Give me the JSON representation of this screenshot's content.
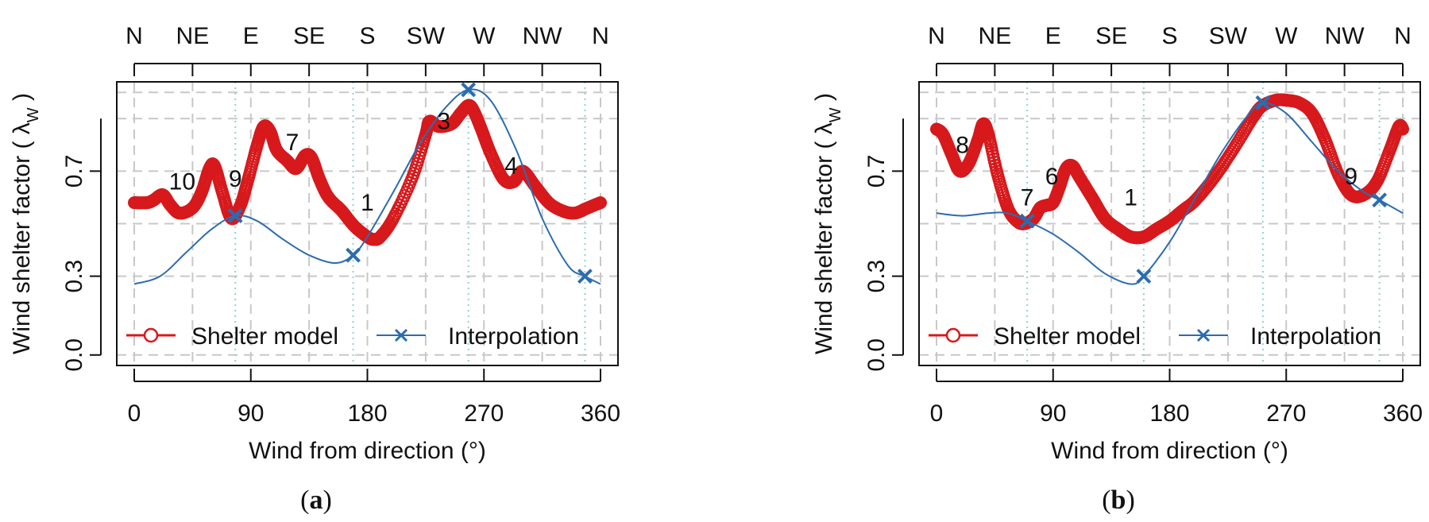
{
  "colors": {
    "shelter": "#d7191c",
    "interp": "#2b6cb0",
    "grid": "#c8c8c8",
    "vline": "#8fd3d3",
    "compass_major": "#111111",
    "compass_minor": "#b0b0b0"
  },
  "chart_data": [
    {
      "type": "line",
      "panel_label": "a",
      "xlabel": "Wind from direction (°)",
      "ylabel": "Wind shelter factor ( λ",
      "ylabel_sub": "W",
      "ylabel_close": ")",
      "xlim": [
        -8,
        368
      ],
      "ylim": [
        -0.04,
        1.04
      ],
      "xticks": [
        "0",
        "90",
        "180",
        "270",
        "360"
      ],
      "xtick_values": [
        0,
        90,
        180,
        270,
        360
      ],
      "yticks": [
        "0.0",
        "0.3",
        "0.7"
      ],
      "ytick_values": [
        0.0,
        0.3,
        0.7
      ],
      "ygrid": [
        0.0,
        0.3,
        0.5,
        0.7,
        0.9,
        1.0
      ],
      "xgrid": [
        0,
        45,
        90,
        135,
        180,
        225,
        270,
        315,
        360
      ],
      "compass": [
        {
          "label": "N",
          "deg": 0,
          "major": true
        },
        {
          "label": "NE",
          "deg": 45,
          "major": false
        },
        {
          "label": "E",
          "deg": 90,
          "major": true
        },
        {
          "label": "SE",
          "deg": 135,
          "major": false
        },
        {
          "label": "S",
          "deg": 180,
          "major": true
        },
        {
          "label": "SW",
          "deg": 225,
          "major": false
        },
        {
          "label": "W",
          "deg": 270,
          "major": true
        },
        {
          "label": "NW",
          "deg": 315,
          "major": false
        },
        {
          "label": "N",
          "deg": 360,
          "major": true
        }
      ],
      "legend": {
        "placement": "bottom",
        "shelter_label": "Shelter model",
        "interp_label": "Interpolation"
      },
      "series": [
        {
          "name": "Shelter model",
          "x": [
            0,
            10,
            15,
            22,
            28,
            35,
            45,
            52,
            58,
            62,
            68,
            75,
            82,
            88,
            95,
            100,
            105,
            110,
            118,
            125,
            132,
            137,
            143,
            150,
            160,
            170,
            180,
            185,
            190,
            200,
            215,
            225,
            228,
            235,
            245,
            252,
            258,
            262,
            268,
            275,
            285,
            293,
            300,
            310,
            320,
            330,
            340,
            350,
            360
          ],
          "y": [
            0.58,
            0.58,
            0.59,
            0.61,
            0.57,
            0.54,
            0.56,
            0.62,
            0.71,
            0.72,
            0.62,
            0.52,
            0.57,
            0.67,
            0.8,
            0.87,
            0.85,
            0.78,
            0.74,
            0.71,
            0.76,
            0.75,
            0.67,
            0.6,
            0.55,
            0.49,
            0.45,
            0.44,
            0.45,
            0.52,
            0.68,
            0.84,
            0.89,
            0.87,
            0.88,
            0.92,
            0.95,
            0.93,
            0.86,
            0.77,
            0.67,
            0.66,
            0.7,
            0.64,
            0.58,
            0.55,
            0.54,
            0.56,
            0.58
          ]
        },
        {
          "name": "Interpolation",
          "x": [
            0,
            20,
            40,
            60,
            78,
            95,
            115,
            135,
            155,
            169,
            180,
            200,
            220,
            240,
            258,
            275,
            295,
            315,
            335,
            348,
            360
          ],
          "y": [
            0.27,
            0.3,
            0.39,
            0.48,
            0.53,
            0.51,
            0.44,
            0.38,
            0.35,
            0.38,
            0.45,
            0.62,
            0.8,
            0.94,
            1.01,
            0.97,
            0.78,
            0.52,
            0.34,
            0.3,
            0.27
          ]
        }
      ],
      "interp_points": [
        {
          "x": 78,
          "y": 0.53
        },
        {
          "x": 169,
          "y": 0.38
        },
        {
          "x": 258,
          "y": 1.01
        },
        {
          "x": 348,
          "y": 0.3
        }
      ],
      "vlines": [
        78,
        169,
        258,
        348
      ],
      "annotations": [
        {
          "text": "10",
          "x": 37,
          "y": 0.63
        },
        {
          "text": "9",
          "x": 78,
          "y": 0.64
        },
        {
          "text": "7",
          "x": 122,
          "y": 0.78
        },
        {
          "text": "1",
          "x": 180,
          "y": 0.55
        },
        {
          "text": "3",
          "x": 239,
          "y": 0.86
        },
        {
          "text": "4",
          "x": 291,
          "y": 0.69
        }
      ]
    },
    {
      "type": "line",
      "panel_label": "b",
      "xlabel": "Wind from direction (°)",
      "ylabel": "Wind shelter factor ( λ",
      "ylabel_sub": "W",
      "ylabel_close": ")",
      "xlim": [
        -8,
        368
      ],
      "ylim": [
        -0.04,
        1.04
      ],
      "xticks": [
        "0",
        "90",
        "180",
        "270",
        "360"
      ],
      "xtick_values": [
        0,
        90,
        180,
        270,
        360
      ],
      "yticks": [
        "0.0",
        "0.3",
        "0.7"
      ],
      "ytick_values": [
        0.0,
        0.3,
        0.7
      ],
      "ygrid": [
        0.0,
        0.3,
        0.5,
        0.7,
        0.9,
        1.0
      ],
      "xgrid": [
        0,
        45,
        90,
        135,
        180,
        225,
        270,
        315,
        360
      ],
      "compass": [
        {
          "label": "N",
          "deg": 0,
          "major": true
        },
        {
          "label": "NE",
          "deg": 45,
          "major": false
        },
        {
          "label": "E",
          "deg": 90,
          "major": true
        },
        {
          "label": "SE",
          "deg": 135,
          "major": false
        },
        {
          "label": "S",
          "deg": 180,
          "major": true
        },
        {
          "label": "SW",
          "deg": 225,
          "major": false
        },
        {
          "label": "W",
          "deg": 270,
          "major": true
        },
        {
          "label": "NW",
          "deg": 315,
          "major": false
        },
        {
          "label": "N",
          "deg": 360,
          "major": true
        }
      ],
      "legend": {
        "placement": "bottom",
        "shelter_label": "Shelter model",
        "interp_label": "Interpolation"
      },
      "series": [
        {
          "name": "Shelter model",
          "x": [
            0,
            5,
            12,
            18,
            25,
            32,
            36,
            40,
            47,
            55,
            62,
            68,
            75,
            80,
            85,
            90,
            95,
            100,
            105,
            110,
            120,
            130,
            140,
            150,
            160,
            170,
            180,
            190,
            200,
            215,
            230,
            245,
            252,
            262,
            270,
            280,
            290,
            300,
            310,
            320,
            330,
            340,
            350,
            357,
            360
          ],
          "y": [
            0.86,
            0.84,
            0.76,
            0.7,
            0.73,
            0.82,
            0.88,
            0.84,
            0.69,
            0.56,
            0.51,
            0.5,
            0.52,
            0.56,
            0.57,
            0.58,
            0.64,
            0.71,
            0.72,
            0.68,
            0.6,
            0.52,
            0.48,
            0.45,
            0.45,
            0.48,
            0.51,
            0.55,
            0.59,
            0.68,
            0.79,
            0.91,
            0.95,
            0.97,
            0.97,
            0.96,
            0.92,
            0.82,
            0.69,
            0.61,
            0.61,
            0.66,
            0.78,
            0.87,
            0.86
          ]
        },
        {
          "name": "Interpolation",
          "x": [
            0,
            20,
            40,
            55,
            70,
            90,
            110,
            130,
            150,
            160,
            180,
            200,
            220,
            240,
            252,
            270,
            290,
            310,
            330,
            342,
            360
          ],
          "y": [
            0.54,
            0.53,
            0.54,
            0.54,
            0.51,
            0.46,
            0.39,
            0.31,
            0.27,
            0.3,
            0.43,
            0.6,
            0.77,
            0.91,
            0.96,
            0.92,
            0.81,
            0.7,
            0.62,
            0.59,
            0.54
          ]
        }
      ],
      "interp_points": [
        {
          "x": 70,
          "y": 0.51
        },
        {
          "x": 160,
          "y": 0.3
        },
        {
          "x": 252,
          "y": 0.96
        },
        {
          "x": 342,
          "y": 0.59
        }
      ],
      "vlines": [
        70,
        160,
        252,
        342
      ],
      "annotations": [
        {
          "text": "8",
          "x": 20,
          "y": 0.77
        },
        {
          "text": "6",
          "x": 89,
          "y": 0.65
        },
        {
          "text": "7",
          "x": 70,
          "y": 0.57
        },
        {
          "text": "1",
          "x": 150,
          "y": 0.57
        },
        {
          "text": "9",
          "x": 320,
          "y": 0.65
        }
      ]
    }
  ]
}
